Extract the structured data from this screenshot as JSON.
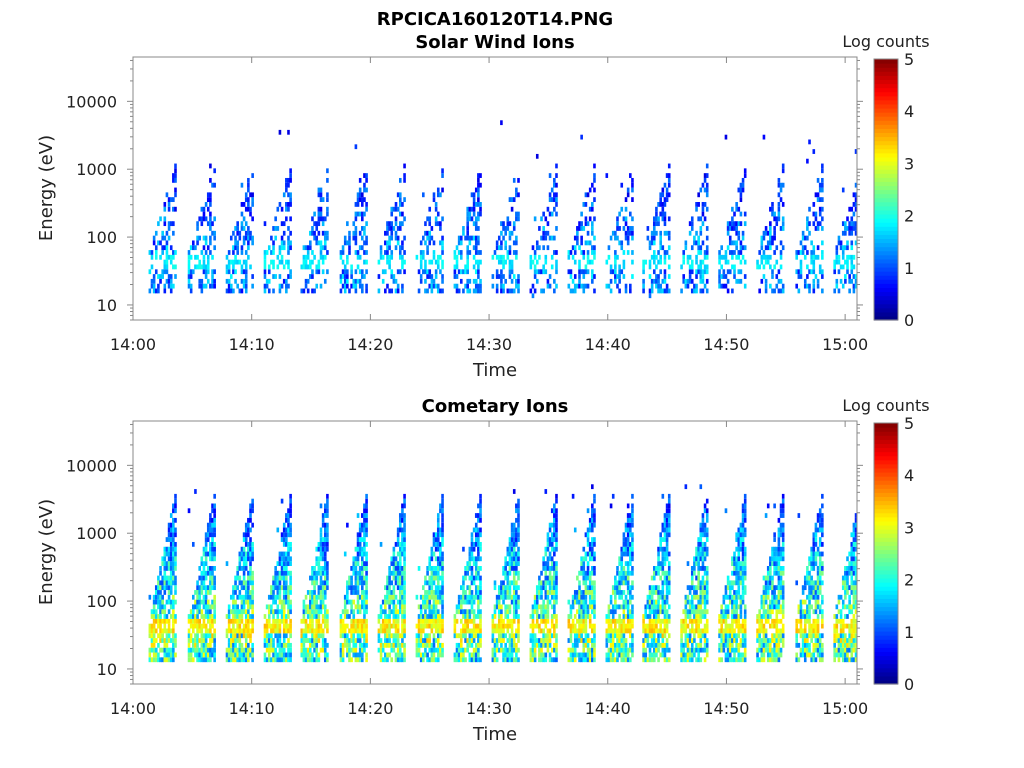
{
  "figure_title": "RPCICA160120T14.PNG",
  "colors": {
    "frame": "#888888",
    "jet_colormap": [
      "#00007F",
      "#0000FF",
      "#007FFF",
      "#00FFFF",
      "#7FFF7F",
      "#FFFF00",
      "#FF7F00",
      "#FF0000",
      "#7F0000"
    ]
  },
  "chart_data": [
    {
      "type": "heatmap",
      "title": "Solar Wind Ions",
      "xlabel": "Time",
      "ylabel": "Energy (eV)",
      "y_scale": "log",
      "ylim": [
        6,
        45000
      ],
      "xlim": [
        "14:00",
        "15:01"
      ],
      "x_ticks": [
        "14:00",
        "14:10",
        "14:20",
        "14:30",
        "14:40",
        "14:50",
        "15:00"
      ],
      "y_ticks": [
        "10",
        "100",
        "1000",
        "10000"
      ],
      "colorbar": {
        "label": "Log counts",
        "range": [
          0,
          5
        ],
        "ticks": [
          "0",
          "1",
          "2",
          "3",
          "4",
          "5"
        ]
      },
      "sweep_times_min": [
        2.5,
        5.8,
        9.0,
        12.2,
        15.3,
        18.6,
        21.8,
        25.0,
        28.2,
        31.4,
        34.6,
        37.8,
        41.0,
        44.1,
        47.3,
        50.5,
        53.7,
        57.0,
        60.2
      ],
      "peak_log_counts_approx": 2.0,
      "dominant_energy_range_eV": [
        20,
        600
      ]
    },
    {
      "type": "heatmap",
      "title": "Cometary Ions",
      "xlabel": "Time",
      "ylabel": "Energy (eV)",
      "y_scale": "log",
      "ylim": [
        6,
        45000
      ],
      "xlim": [
        "14:00",
        "15:01"
      ],
      "x_ticks": [
        "14:00",
        "14:10",
        "14:20",
        "14:30",
        "14:40",
        "14:50",
        "15:00"
      ],
      "y_ticks": [
        "10",
        "100",
        "1000",
        "10000"
      ],
      "colorbar": {
        "label": "Log counts",
        "range": [
          0,
          5
        ],
        "ticks": [
          "0",
          "1",
          "2",
          "3",
          "4",
          "5"
        ]
      },
      "sweep_times_min": [
        2.5,
        5.8,
        9.0,
        12.2,
        15.3,
        18.6,
        21.8,
        25.0,
        28.2,
        31.4,
        34.6,
        37.8,
        41.0,
        44.1,
        47.3,
        50.5,
        53.7,
        57.0,
        60.2
      ],
      "peak_log_counts_approx": 3.5,
      "dominant_energy_range_eV": [
        15,
        2000
      ]
    }
  ]
}
